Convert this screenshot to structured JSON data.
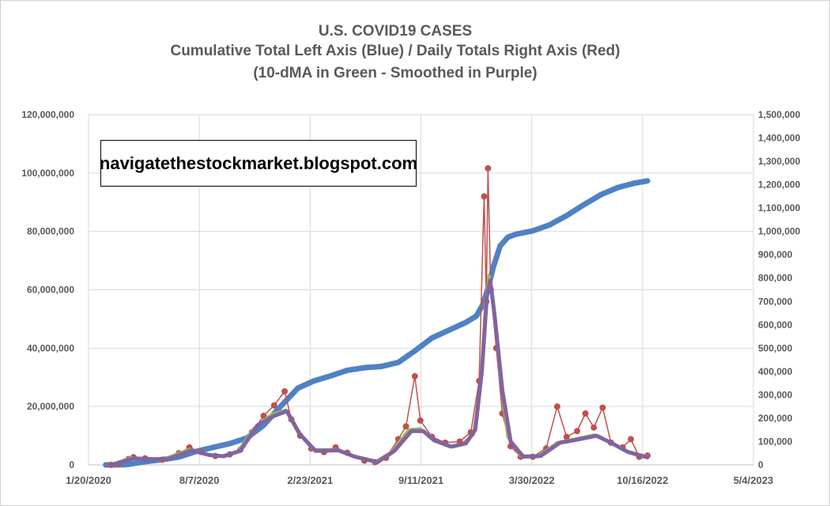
{
  "chart_data": {
    "type": "scatter",
    "title": "U.S. COVID19 CASES",
    "subtitle": "Cumulative Total Left Axis (Blue) / Daily Totals Right Axis (Red)",
    "subtitle2": "(10-dMA in Green - Smoothed in Purple)",
    "watermark": "navigatethestockmarket.blogspot.com",
    "colors": {
      "cumulative": "#4e82c4",
      "daily": "#c0504d",
      "ma": "#9bbb59",
      "smoothed": "#8064a2",
      "grid": "#d9d9d9"
    },
    "x_axis": {
      "range": [
        "2020-01-20",
        "2023-05-04"
      ],
      "tick_labels": [
        "1/20/2020",
        "8/7/2020",
        "2/23/2021",
        "9/11/2021",
        "3/30/2022",
        "10/16/2022",
        "5/4/2023"
      ]
    },
    "y_left": {
      "range": [
        0,
        120000000
      ],
      "tick_labels": [
        "0",
        "20,000,000",
        "40,000,000",
        "60,000,000",
        "80,000,000",
        "100,000,000",
        "120,000,000"
      ]
    },
    "y_right": {
      "range": [
        0,
        1500000
      ],
      "tick_labels": [
        "0",
        "100,000",
        "200,000",
        "300,000",
        "400,000",
        "500,000",
        "600,000",
        "700,000",
        "800,000",
        "900,000",
        "1,000,000",
        "1,100,000",
        "1,200,000",
        "1,300,000",
        "1,400,000",
        "1,500,000"
      ]
    },
    "grid": true,
    "series": [
      {
        "axis": "left",
        "points": [
          [
            "2020-02-20",
            0
          ],
          [
            "2020-03-20",
            20000
          ],
          [
            "2020-04-01",
            200000
          ],
          [
            "2020-05-01",
            1100000
          ],
          [
            "2020-06-01",
            1800000
          ],
          [
            "2020-07-01",
            2700000
          ],
          [
            "2020-08-01",
            4600000
          ],
          [
            "2020-09-01",
            6000000
          ],
          [
            "2020-10-01",
            7300000
          ],
          [
            "2020-11-01",
            9200000
          ],
          [
            "2020-12-01",
            13600000
          ],
          [
            "2021-01-01",
            20100000
          ],
          [
            "2021-02-01",
            26300000
          ],
          [
            "2021-03-01",
            28700000
          ],
          [
            "2021-04-01",
            30500000
          ],
          [
            "2021-05-01",
            32400000
          ],
          [
            "2021-06-01",
            33300000
          ],
          [
            "2021-07-01",
            33700000
          ],
          [
            "2021-08-01",
            35100000
          ],
          [
            "2021-09-01",
            39200000
          ],
          [
            "2021-10-01",
            43500000
          ],
          [
            "2021-11-01",
            46200000
          ],
          [
            "2021-12-01",
            48800000
          ],
          [
            "2021-12-20",
            51000000
          ],
          [
            "2022-01-01",
            55000000
          ],
          [
            "2022-01-10",
            60500000
          ],
          [
            "2022-01-20",
            68000000
          ],
          [
            "2022-02-01",
            75000000
          ],
          [
            "2022-02-15",
            78000000
          ],
          [
            "2022-03-01",
            79000000
          ],
          [
            "2022-04-01",
            80200000
          ],
          [
            "2022-05-01",
            82200000
          ],
          [
            "2022-06-01",
            85400000
          ],
          [
            "2022-07-01",
            89000000
          ],
          [
            "2022-08-01",
            92500000
          ],
          [
            "2022-09-01",
            95000000
          ],
          [
            "2022-10-01",
            96500000
          ],
          [
            "2022-10-25",
            97300000
          ]
        ]
      },
      {
        "axis": "right",
        "points": [
          [
            "2020-03-01",
            0
          ],
          [
            "2020-03-15",
            5000
          ],
          [
            "2020-04-01",
            25000
          ],
          [
            "2020-04-10",
            33000
          ],
          [
            "2020-05-01",
            28000
          ],
          [
            "2020-06-01",
            22000
          ],
          [
            "2020-07-01",
            50000
          ],
          [
            "2020-07-20",
            75000
          ],
          [
            "2020-08-10",
            55000
          ],
          [
            "2020-09-05",
            38000
          ],
          [
            "2020-10-01",
            45000
          ],
          [
            "2020-10-20",
            65000
          ],
          [
            "2020-11-10",
            140000
          ],
          [
            "2020-12-01",
            210000
          ],
          [
            "2020-12-20",
            255000
          ],
          [
            "2021-01-08",
            315000
          ],
          [
            "2021-01-20",
            195000
          ],
          [
            "2021-02-05",
            125000
          ],
          [
            "2021-02-25",
            70000
          ],
          [
            "2021-03-20",
            55000
          ],
          [
            "2021-04-10",
            75000
          ],
          [
            "2021-05-01",
            52000
          ],
          [
            "2021-06-01",
            18000
          ],
          [
            "2021-06-20",
            12000
          ],
          [
            "2021-07-10",
            30000
          ],
          [
            "2021-08-01",
            110000
          ],
          [
            "2021-08-15",
            165000
          ],
          [
            "2021-08-31",
            380000
          ],
          [
            "2021-09-10",
            190000
          ],
          [
            "2021-10-01",
            120000
          ],
          [
            "2021-10-25",
            95000
          ],
          [
            "2021-11-20",
            100000
          ],
          [
            "2021-12-10",
            140000
          ],
          [
            "2021-12-25",
            360000
          ],
          [
            "2022-01-03",
            1150000
          ],
          [
            "2022-01-07",
            700000
          ],
          [
            "2022-01-10",
            1270000
          ],
          [
            "2022-01-15",
            750000
          ],
          [
            "2022-01-25",
            500000
          ],
          [
            "2022-02-05",
            220000
          ],
          [
            "2022-02-20",
            80000
          ],
          [
            "2022-03-10",
            35000
          ],
          [
            "2022-04-01",
            35000
          ],
          [
            "2022-04-25",
            70000
          ],
          [
            "2022-05-15",
            250000
          ],
          [
            "2022-06-01",
            120000
          ],
          [
            "2022-06-20",
            145000
          ],
          [
            "2022-07-05",
            220000
          ],
          [
            "2022-07-20",
            160000
          ],
          [
            "2022-08-05",
            245000
          ],
          [
            "2022-08-20",
            95000
          ],
          [
            "2022-09-10",
            75000
          ],
          [
            "2022-09-25",
            110000
          ],
          [
            "2022-10-10",
            35000
          ],
          [
            "2022-10-25",
            40000
          ]
        ]
      },
      {
        "axis": "right",
        "points": [
          [
            "2020-03-01",
            0
          ],
          [
            "2020-04-05",
            30000
          ],
          [
            "2020-05-01",
            27000
          ],
          [
            "2020-06-01",
            22000
          ],
          [
            "2020-07-20",
            66000
          ],
          [
            "2020-08-20",
            45000
          ],
          [
            "2020-09-15",
            38000
          ],
          [
            "2020-10-15",
            55000
          ],
          [
            "2020-11-15",
            160000
          ],
          [
            "2020-12-15",
            215000
          ],
          [
            "2021-01-10",
            235000
          ],
          [
            "2021-02-01",
            140000
          ],
          [
            "2021-03-01",
            65000
          ],
          [
            "2021-04-10",
            65000
          ],
          [
            "2021-05-10",
            40000
          ],
          [
            "2021-06-20",
            12000
          ],
          [
            "2021-07-20",
            55000
          ],
          [
            "2021-08-20",
            150000
          ],
          [
            "2021-09-10",
            155000
          ],
          [
            "2021-10-01",
            110000
          ],
          [
            "2021-11-01",
            78000
          ],
          [
            "2021-11-25",
            90000
          ],
          [
            "2021-12-15",
            130000
          ],
          [
            "2021-12-28",
            350000
          ],
          [
            "2022-01-06",
            700000
          ],
          [
            "2022-01-12",
            810000
          ],
          [
            "2022-01-20",
            700000
          ],
          [
            "2022-02-01",
            380000
          ],
          [
            "2022-02-15",
            120000
          ],
          [
            "2022-03-10",
            40000
          ],
          [
            "2022-04-10",
            35000
          ],
          [
            "2022-05-15",
            95000
          ],
          [
            "2022-06-15",
            110000
          ],
          [
            "2022-07-20",
            128000
          ],
          [
            "2022-08-15",
            100000
          ],
          [
            "2022-09-15",
            60000
          ],
          [
            "2022-10-25",
            35000
          ]
        ]
      },
      {
        "axis": "right",
        "points": [
          [
            "2020-03-01",
            0
          ],
          [
            "2020-04-10",
            28000
          ],
          [
            "2020-05-10",
            25000
          ],
          [
            "2020-06-10",
            24000
          ],
          [
            "2020-07-25",
            62000
          ],
          [
            "2020-08-25",
            42000
          ],
          [
            "2020-09-20",
            37000
          ],
          [
            "2020-10-20",
            60000
          ],
          [
            "2020-11-20",
            170000
          ],
          [
            "2020-12-20",
            210000
          ],
          [
            "2021-01-12",
            230000
          ],
          [
            "2021-02-05",
            130000
          ],
          [
            "2021-03-05",
            60000
          ],
          [
            "2021-04-15",
            62000
          ],
          [
            "2021-05-15",
            35000
          ],
          [
            "2021-06-25",
            12000
          ],
          [
            "2021-07-25",
            60000
          ],
          [
            "2021-08-25",
            145000
          ],
          [
            "2021-09-15",
            145000
          ],
          [
            "2021-10-05",
            105000
          ],
          [
            "2021-11-05",
            78000
          ],
          [
            "2021-12-01",
            92000
          ],
          [
            "2021-12-18",
            150000
          ],
          [
            "2021-12-30",
            400000
          ],
          [
            "2022-01-08",
            720000
          ],
          [
            "2022-01-14",
            790000
          ],
          [
            "2022-01-22",
            640000
          ],
          [
            "2022-02-05",
            320000
          ],
          [
            "2022-02-20",
            100000
          ],
          [
            "2022-03-15",
            35000
          ],
          [
            "2022-04-15",
            38000
          ],
          [
            "2022-05-20",
            95000
          ],
          [
            "2022-06-20",
            108000
          ],
          [
            "2022-07-25",
            125000
          ],
          [
            "2022-08-20",
            95000
          ],
          [
            "2022-09-20",
            55000
          ],
          [
            "2022-10-25",
            32000
          ]
        ]
      }
    ]
  }
}
